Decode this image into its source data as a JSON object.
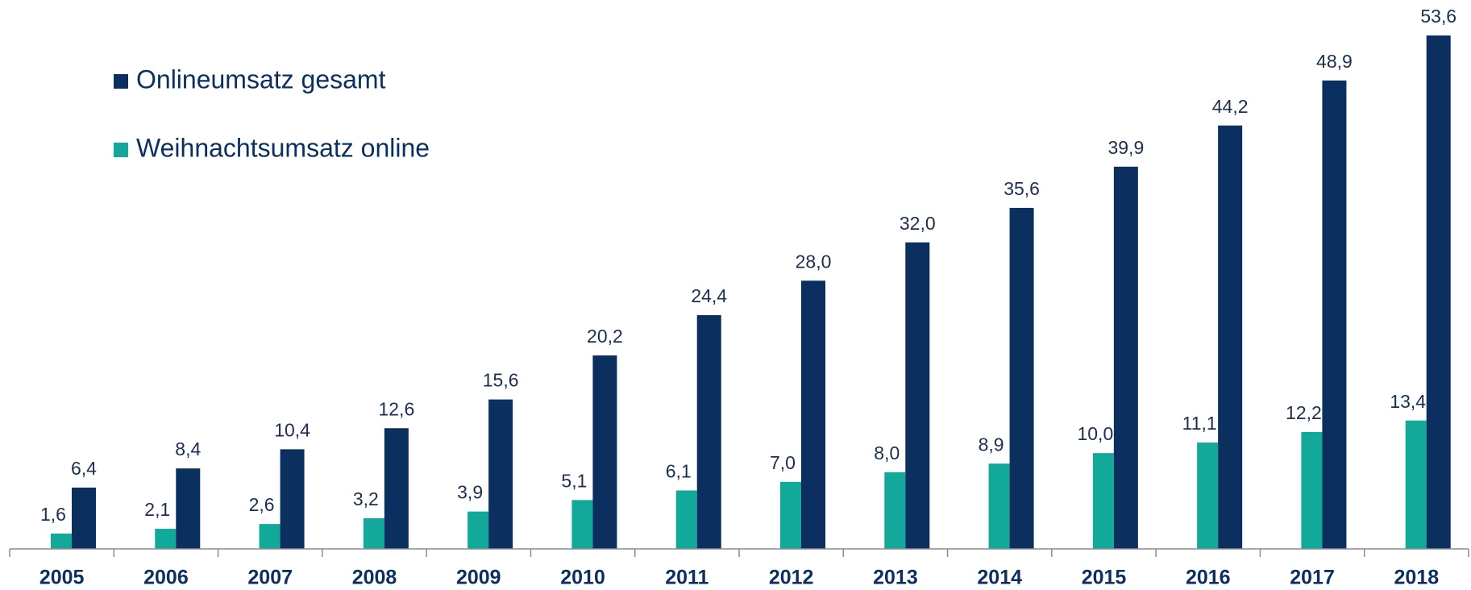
{
  "chart_data": {
    "type": "bar",
    "categories": [
      "2005",
      "2006",
      "2007",
      "2008",
      "2009",
      "2010",
      "2011",
      "2012",
      "2013",
      "2014",
      "2015",
      "2016",
      "2017",
      "2018"
    ],
    "series": [
      {
        "name": "Weihnachtsumsatz online",
        "color": "#12a89a",
        "values": [
          1.6,
          2.1,
          2.6,
          3.2,
          3.9,
          5.1,
          6.1,
          7.0,
          8.0,
          8.9,
          10.0,
          11.1,
          12.2,
          13.4
        ],
        "value_labels": [
          "1,6",
          "2,1",
          "2,6",
          "3,2",
          "3,9",
          "5,1",
          "6,1",
          "7,0",
          "8,0",
          "8,9",
          "10,0",
          "11,1",
          "12,2",
          "13,4"
        ]
      },
      {
        "name": "Onlineumsatz gesamt",
        "color": "#0b2f5e",
        "values": [
          6.4,
          8.4,
          10.4,
          12.6,
          15.6,
          20.2,
          24.4,
          28.0,
          32.0,
          35.6,
          39.9,
          44.2,
          48.9,
          53.6
        ],
        "value_labels": [
          "6,4",
          "8,4",
          "10,4",
          "12,6",
          "15,6",
          "20,2",
          "24,4",
          "28,0",
          "32,0",
          "35,6",
          "39,9",
          "44,2",
          "48,9",
          "53,6"
        ]
      }
    ],
    "legend": "top-left"
  }
}
